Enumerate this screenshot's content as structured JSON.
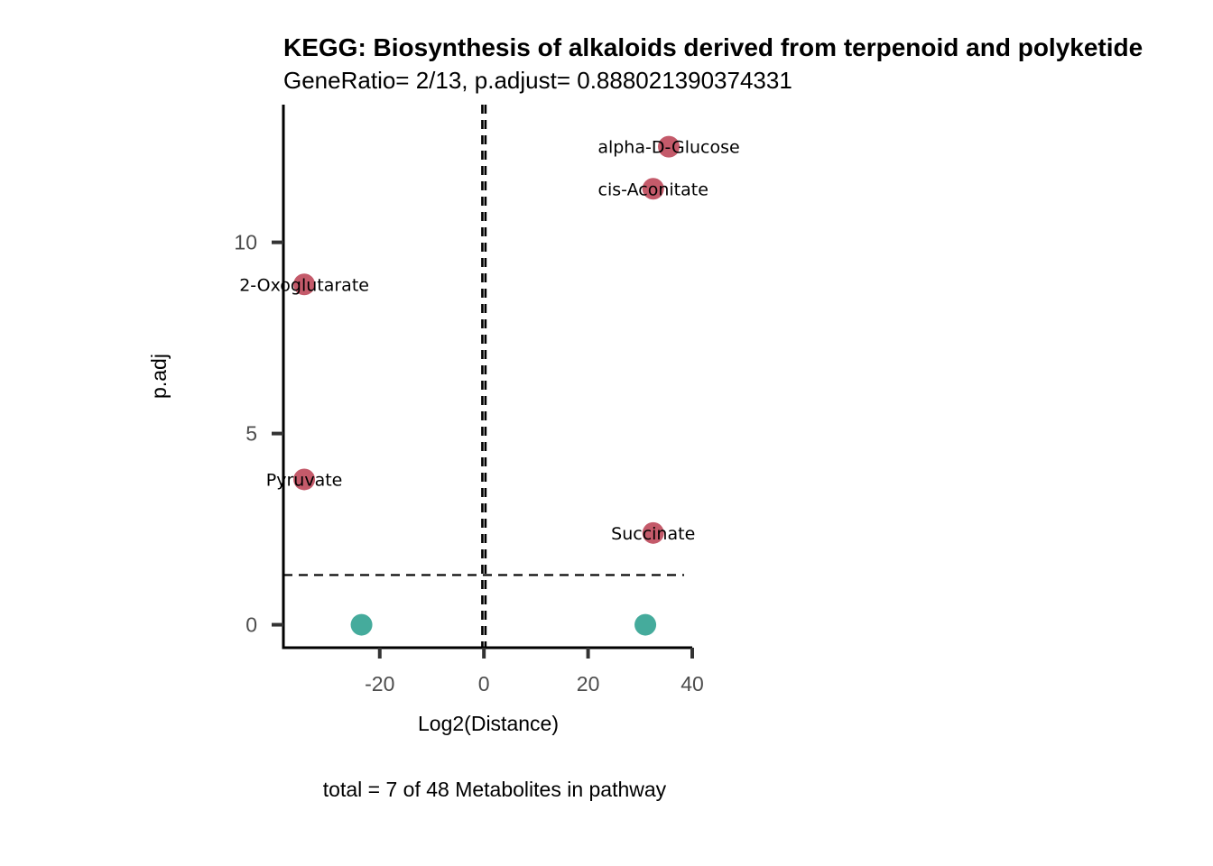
{
  "chart_data": {
    "type": "scatter",
    "title": "KEGG: Biosynthesis of alkaloids derived from terpenoid and polyketide",
    "subtitle": "GeneRatio= 2/13, p.adjust= 0.888021390374331",
    "xlabel": "Log2(Distance)",
    "ylabel": "p.adj",
    "caption": "total = 7 of 48 Metabolites in pathway",
    "xlim": [
      -38.5,
      40
    ],
    "ylim": [
      -0.6,
      13.6
    ],
    "x_ticks": [
      -20,
      0,
      20,
      40
    ],
    "y_ticks": [
      0,
      5,
      10
    ],
    "vlines": [
      -0.3,
      0.3
    ],
    "hline": 1.3,
    "grid": false,
    "colors": {
      "significant": "#C45A6A",
      "not_significant": "#45AB9C"
    },
    "points": [
      {
        "label": "alpha-D-Glucose",
        "x": 35.5,
        "y": 12.5,
        "significant": true
      },
      {
        "label": "cis-Aconitate",
        "x": 32.5,
        "y": 11.4,
        "significant": true
      },
      {
        "label": "2-Oxoglutarate",
        "x": -34.5,
        "y": 8.9,
        "significant": true
      },
      {
        "label": "Pyruvate",
        "x": -34.5,
        "y": 3.8,
        "significant": true
      },
      {
        "label": "Succinate",
        "x": 32.5,
        "y": 2.4,
        "significant": true
      },
      {
        "label": "",
        "x": -23.5,
        "y": 0,
        "significant": false
      },
      {
        "label": "",
        "x": 31,
        "y": 0,
        "significant": false
      }
    ]
  }
}
